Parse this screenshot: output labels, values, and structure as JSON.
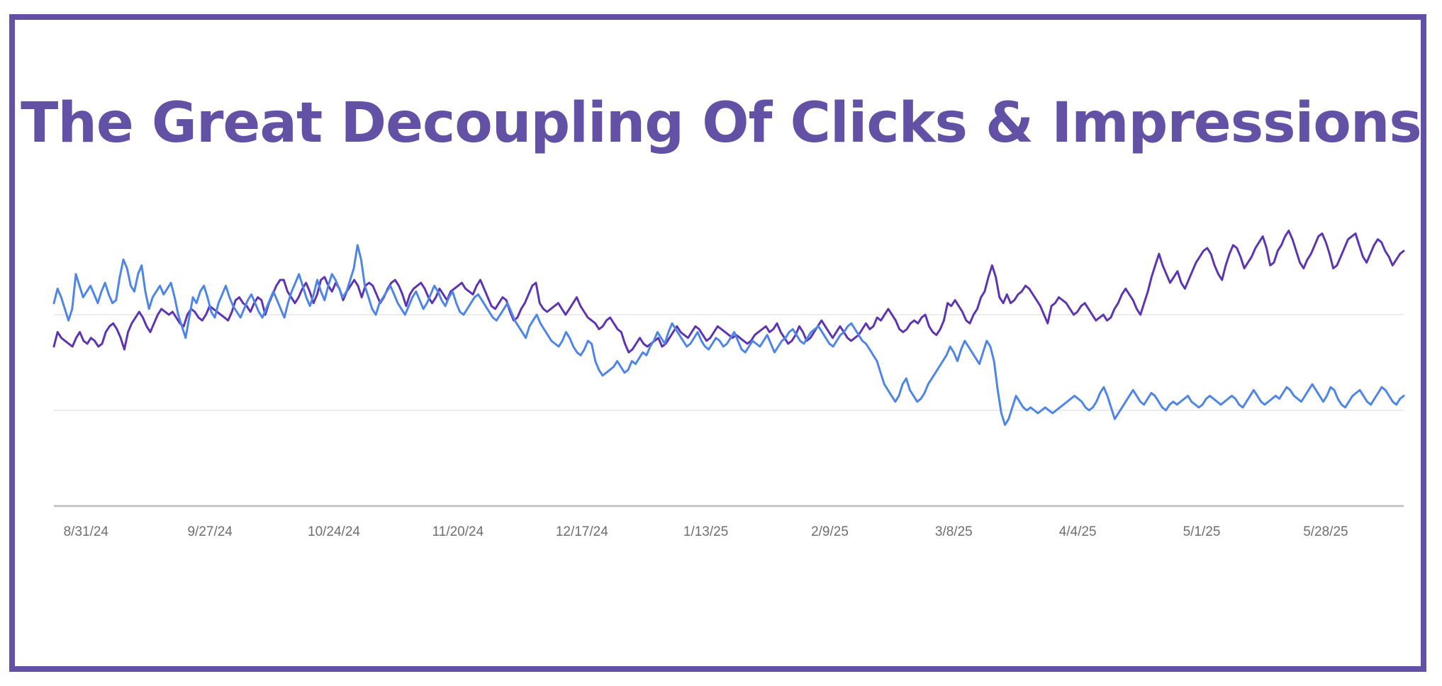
{
  "title": "The Great Decoupling Of Clicks & Impressions",
  "colors": {
    "frame": "#6251a5",
    "title": "#6251a5",
    "impressions_line": "#5e35b1",
    "clicks_line": "#4f86e5",
    "gridline": "#e6e6e6",
    "axis": "#bdbdbd",
    "tick_text": "#6e6e6e"
  },
  "chart_data": {
    "type": "line",
    "title": "The Great Decoupling Of Clicks & Impressions",
    "xlabel": "",
    "ylabel": "",
    "x_start": "2024-08-24",
    "x_end": "2025-06-14",
    "x_ticks": [
      "8/31/24",
      "9/27/24",
      "10/24/24",
      "11/20/24",
      "12/17/24",
      "1/13/25",
      "2/9/25",
      "3/8/25",
      "4/4/25",
      "5/1/25",
      "5/28/25"
    ],
    "y_tick_labels": "none",
    "grid": "horizontal",
    "legend": "none",
    "series": [
      {
        "color": "#5e35b1",
        "values": [
          0.55,
          0.6,
          0.58,
          0.57,
          0.56,
          0.55,
          0.58,
          0.6,
          0.57,
          0.56,
          0.58,
          0.57,
          0.55,
          0.56,
          0.6,
          0.62,
          0.63,
          0.61,
          0.58,
          0.54,
          0.6,
          0.63,
          0.65,
          0.67,
          0.65,
          0.62,
          0.6,
          0.63,
          0.66,
          0.68,
          0.67,
          0.66,
          0.67,
          0.65,
          0.63,
          0.62,
          0.66,
          0.68,
          0.67,
          0.65,
          0.64,
          0.66,
          0.69,
          0.68,
          0.67,
          0.66,
          0.65,
          0.64,
          0.67,
          0.71,
          0.72,
          0.7,
          0.69,
          0.67,
          0.7,
          0.72,
          0.71,
          0.66,
          0.7,
          0.73,
          0.76,
          0.78,
          0.78,
          0.74,
          0.72,
          0.7,
          0.72,
          0.75,
          0.77,
          0.74,
          0.7,
          0.73,
          0.78,
          0.79,
          0.76,
          0.74,
          0.77,
          0.75,
          0.71,
          0.74,
          0.76,
          0.78,
          0.76,
          0.72,
          0.76,
          0.77,
          0.76,
          0.73,
          0.7,
          0.72,
          0.75,
          0.77,
          0.78,
          0.76,
          0.73,
          0.69,
          0.73,
          0.75,
          0.76,
          0.77,
          0.75,
          0.72,
          0.7,
          0.72,
          0.75,
          0.73,
          0.71,
          0.74,
          0.75,
          0.76,
          0.77,
          0.75,
          0.74,
          0.73,
          0.76,
          0.78,
          0.75,
          0.72,
          0.69,
          0.68,
          0.7,
          0.72,
          0.71,
          0.67,
          0.64,
          0.65,
          0.68,
          0.7,
          0.73,
          0.76,
          0.77,
          0.7,
          0.68,
          0.67,
          0.68,
          0.69,
          0.7,
          0.68,
          0.66,
          0.68,
          0.7,
          0.72,
          0.69,
          0.67,
          0.65,
          0.64,
          0.63,
          0.61,
          0.62,
          0.64,
          0.65,
          0.63,
          0.61,
          0.6,
          0.56,
          0.53,
          0.54,
          0.56,
          0.58,
          0.56,
          0.55,
          0.56,
          0.57,
          0.58,
          0.55,
          0.56,
          0.58,
          0.6,
          0.62,
          0.6,
          0.59,
          0.58,
          0.6,
          0.62,
          0.61,
          0.59,
          0.57,
          0.58,
          0.6,
          0.62,
          0.61,
          0.6,
          0.59,
          0.58,
          0.59,
          0.58,
          0.57,
          0.56,
          0.57,
          0.59,
          0.6,
          0.61,
          0.62,
          0.6,
          0.61,
          0.63,
          0.6,
          0.58,
          0.56,
          0.57,
          0.59,
          0.62,
          0.6,
          0.57,
          0.58,
          0.6,
          0.62,
          0.64,
          0.62,
          0.6,
          0.58,
          0.6,
          0.62,
          0.6,
          0.58,
          0.57,
          0.58,
          0.59,
          0.61,
          0.63,
          0.61,
          0.62,
          0.65,
          0.64,
          0.66,
          0.68,
          0.66,
          0.64,
          0.61,
          0.6,
          0.61,
          0.63,
          0.64,
          0.63,
          0.65,
          0.66,
          0.62,
          0.6,
          0.59,
          0.61,
          0.64,
          0.7,
          0.69,
          0.71,
          0.69,
          0.67,
          0.64,
          0.63,
          0.66,
          0.68,
          0.72,
          0.74,
          0.79,
          0.83,
          0.79,
          0.72,
          0.7,
          0.73,
          0.7,
          0.71,
          0.73,
          0.74,
          0.76,
          0.75,
          0.73,
          0.71,
          0.69,
          0.66,
          0.63,
          0.69,
          0.7,
          0.72,
          0.71,
          0.7,
          0.68,
          0.66,
          0.67,
          0.69,
          0.7,
          0.68,
          0.66,
          0.64,
          0.65,
          0.66,
          0.64,
          0.65,
          0.68,
          0.7,
          0.73,
          0.75,
          0.73,
          0.71,
          0.68,
          0.66,
          0.7,
          0.74,
          0.79,
          0.83,
          0.87,
          0.83,
          0.8,
          0.77,
          0.79,
          0.81,
          0.77,
          0.75,
          0.78,
          0.81,
          0.84,
          0.86,
          0.88,
          0.89,
          0.87,
          0.83,
          0.8,
          0.78,
          0.83,
          0.87,
          0.9,
          0.89,
          0.86,
          0.82,
          0.84,
          0.86,
          0.89,
          0.91,
          0.93,
          0.89,
          0.83,
          0.84,
          0.88,
          0.9,
          0.93,
          0.95,
          0.92,
          0.88,
          0.84,
          0.82,
          0.85,
          0.87,
          0.9,
          0.93,
          0.94,
          0.91,
          0.87,
          0.82,
          0.83,
          0.86,
          0.89,
          0.92,
          0.93,
          0.94,
          0.9,
          0.86,
          0.84,
          0.87,
          0.9,
          0.92,
          0.91,
          0.88,
          0.86,
          0.83,
          0.85,
          0.87,
          0.88
        ]
      },
      {
        "color": "#4f86e5",
        "values": [
          0.7,
          0.75,
          0.72,
          0.68,
          0.64,
          0.68,
          0.8,
          0.76,
          0.72,
          0.74,
          0.76,
          0.73,
          0.7,
          0.74,
          0.77,
          0.73,
          0.7,
          0.71,
          0.79,
          0.85,
          0.82,
          0.76,
          0.74,
          0.8,
          0.83,
          0.74,
          0.68,
          0.72,
          0.74,
          0.76,
          0.73,
          0.75,
          0.77,
          0.72,
          0.66,
          0.62,
          0.58,
          0.65,
          0.72,
          0.7,
          0.74,
          0.76,
          0.72,
          0.67,
          0.65,
          0.7,
          0.73,
          0.76,
          0.72,
          0.69,
          0.67,
          0.65,
          0.68,
          0.71,
          0.73,
          0.7,
          0.67,
          0.65,
          0.68,
          0.71,
          0.74,
          0.71,
          0.68,
          0.65,
          0.7,
          0.74,
          0.77,
          0.8,
          0.76,
          0.72,
          0.69,
          0.73,
          0.78,
          0.74,
          0.71,
          0.76,
          0.8,
          0.78,
          0.75,
          0.72,
          0.74,
          0.78,
          0.82,
          0.9,
          0.85,
          0.76,
          0.72,
          0.68,
          0.66,
          0.7,
          0.72,
          0.74,
          0.76,
          0.73,
          0.7,
          0.68,
          0.66,
          0.69,
          0.72,
          0.74,
          0.71,
          0.68,
          0.7,
          0.73,
          0.76,
          0.74,
          0.71,
          0.69,
          0.72,
          0.74,
          0.7,
          0.67,
          0.66,
          0.68,
          0.7,
          0.72,
          0.73,
          0.71,
          0.69,
          0.67,
          0.65,
          0.64,
          0.66,
          0.68,
          0.7,
          0.67,
          0.64,
          0.62,
          0.6,
          0.58,
          0.62,
          0.64,
          0.66,
          0.63,
          0.61,
          0.59,
          0.57,
          0.56,
          0.55,
          0.57,
          0.6,
          0.58,
          0.55,
          0.53,
          0.52,
          0.54,
          0.57,
          0.56,
          0.5,
          0.47,
          0.45,
          0.46,
          0.47,
          0.48,
          0.5,
          0.48,
          0.46,
          0.47,
          0.5,
          0.49,
          0.51,
          0.53,
          0.52,
          0.55,
          0.57,
          0.6,
          0.58,
          0.56,
          0.6,
          0.63,
          0.61,
          0.59,
          0.57,
          0.55,
          0.56,
          0.58,
          0.6,
          0.57,
          0.55,
          0.54,
          0.56,
          0.58,
          0.57,
          0.55,
          0.56,
          0.58,
          0.6,
          0.57,
          0.54,
          0.53,
          0.55,
          0.57,
          0.56,
          0.55,
          0.57,
          0.59,
          0.56,
          0.53,
          0.55,
          0.57,
          0.58,
          0.6,
          0.61,
          0.59,
          0.57,
          0.56,
          0.58,
          0.6,
          0.61,
          0.62,
          0.6,
          0.58,
          0.56,
          0.55,
          0.57,
          0.59,
          0.6,
          0.62,
          0.63,
          0.61,
          0.59,
          0.57,
          0.56,
          0.54,
          0.52,
          0.5,
          0.46,
          0.42,
          0.4,
          0.38,
          0.36,
          0.38,
          0.42,
          0.44,
          0.4,
          0.38,
          0.36,
          0.37,
          0.39,
          0.42,
          0.44,
          0.46,
          0.48,
          0.5,
          0.52,
          0.55,
          0.53,
          0.5,
          0.54,
          0.57,
          0.55,
          0.53,
          0.51,
          0.49,
          0.53,
          0.57,
          0.55,
          0.5,
          0.4,
          0.32,
          0.28,
          0.3,
          0.34,
          0.38,
          0.36,
          0.34,
          0.33,
          0.34,
          0.33,
          0.32,
          0.33,
          0.34,
          0.33,
          0.32,
          0.33,
          0.34,
          0.35,
          0.36,
          0.37,
          0.38,
          0.37,
          0.36,
          0.34,
          0.33,
          0.34,
          0.36,
          0.39,
          0.41,
          0.38,
          0.34,
          0.3,
          0.32,
          0.34,
          0.36,
          0.38,
          0.4,
          0.38,
          0.36,
          0.35,
          0.37,
          0.39,
          0.38,
          0.36,
          0.34,
          0.33,
          0.35,
          0.36,
          0.35,
          0.36,
          0.37,
          0.38,
          0.36,
          0.35,
          0.34,
          0.35,
          0.37,
          0.38,
          0.37,
          0.36,
          0.35,
          0.36,
          0.37,
          0.38,
          0.37,
          0.35,
          0.34,
          0.36,
          0.38,
          0.4,
          0.38,
          0.36,
          0.35,
          0.36,
          0.37,
          0.38,
          0.37,
          0.39,
          0.41,
          0.4,
          0.38,
          0.37,
          0.36,
          0.38,
          0.4,
          0.42,
          0.4,
          0.38,
          0.36,
          0.38,
          0.41,
          0.4,
          0.37,
          0.35,
          0.34,
          0.36,
          0.38,
          0.39,
          0.4,
          0.38,
          0.36,
          0.35,
          0.37,
          0.39,
          0.41,
          0.4,
          0.38,
          0.36,
          0.35,
          0.37,
          0.38
        ]
      }
    ]
  }
}
